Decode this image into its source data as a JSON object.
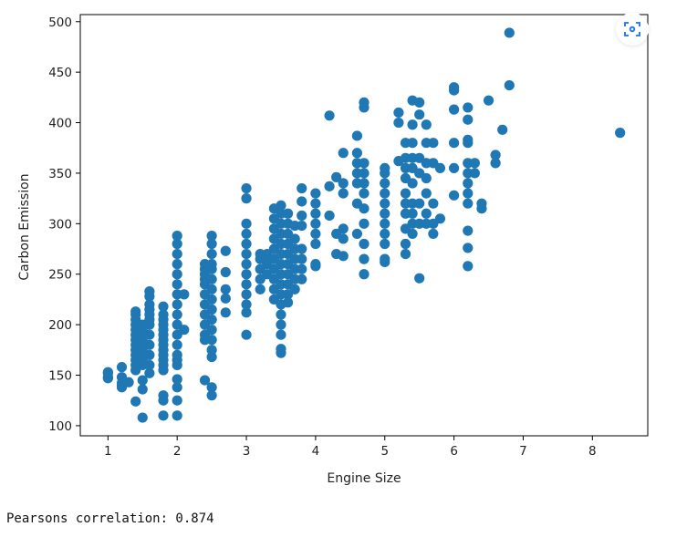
{
  "chart_data": {
    "type": "scatter",
    "xlabel": "Engine Size",
    "ylabel": "Carbon Emission",
    "xlim": [
      0.6,
      8.8
    ],
    "ylim": [
      90,
      507
    ],
    "xticks": [
      1,
      2,
      3,
      4,
      5,
      6,
      7,
      8
    ],
    "yticks": [
      100,
      150,
      200,
      250,
      300,
      350,
      400,
      450,
      500
    ],
    "grid": false,
    "marker_color": "#1f77b4",
    "columns": [
      {
        "x": 1.0,
        "y": [
          147,
          148,
          152,
          153
        ]
      },
      {
        "x": 1.2,
        "y": [
          138,
          140,
          142,
          148,
          158
        ]
      },
      {
        "x": 1.3,
        "y": [
          143
        ]
      },
      {
        "x": 1.4,
        "y": [
          124,
          155,
          160,
          165,
          170,
          175,
          180,
          185,
          190,
          195,
          200,
          205,
          210,
          213
        ]
      },
      {
        "x": 1.5,
        "y": [
          108,
          136,
          145,
          160,
          165,
          170,
          175,
          180,
          185,
          190,
          195,
          200
        ]
      },
      {
        "x": 1.6,
        "y": [
          152,
          160,
          170,
          180,
          190,
          200,
          205,
          210,
          215,
          220,
          228,
          233
        ]
      },
      {
        "x": 1.8,
        "y": [
          110,
          125,
          130,
          155,
          160,
          165,
          170,
          175,
          180,
          185,
          190,
          195,
          200,
          205,
          210,
          218
        ]
      },
      {
        "x": 2.0,
        "y": [
          110,
          125,
          138,
          146,
          160,
          165,
          170,
          180,
          190,
          200,
          210,
          220,
          230,
          240,
          250,
          260,
          270,
          280,
          288
        ]
      },
      {
        "x": 2.1,
        "y": [
          195,
          230
        ]
      },
      {
        "x": 2.4,
        "y": [
          145,
          185,
          190,
          200,
          210,
          220,
          230,
          240,
          245,
          250,
          255,
          260
        ]
      },
      {
        "x": 2.5,
        "y": [
          130,
          138,
          168,
          175,
          185,
          195,
          205,
          215,
          225,
          235,
          245,
          255,
          260,
          270,
          280,
          288
        ]
      },
      {
        "x": 2.7,
        "y": [
          212,
          226,
          235,
          252,
          273
        ]
      },
      {
        "x": 3.0,
        "y": [
          190,
          212,
          220,
          230,
          240,
          250,
          260,
          270,
          280,
          290,
          300,
          325,
          335
        ]
      },
      {
        "x": 3.2,
        "y": [
          235,
          245,
          255,
          265,
          270
        ]
      },
      {
        "x": 3.3,
        "y": [
          250,
          260,
          262,
          270
        ]
      },
      {
        "x": 3.4,
        "y": [
          225,
          235,
          245,
          255,
          265,
          275,
          285,
          295,
          305,
          315
        ]
      },
      {
        "x": 3.5,
        "y": [
          172,
          176,
          190,
          200,
          210,
          220,
          230,
          240,
          250,
          260,
          270,
          280,
          290,
          300,
          310,
          318
        ]
      },
      {
        "x": 3.6,
        "y": [
          222,
          230,
          240,
          250,
          260,
          270,
          280,
          290,
          300,
          310
        ]
      },
      {
        "x": 3.7,
        "y": [
          235,
          245,
          255,
          265,
          275,
          285,
          298
        ]
      },
      {
        "x": 3.8,
        "y": [
          245,
          255,
          265,
          275,
          298,
          308,
          322,
          335
        ]
      },
      {
        "x": 4.0,
        "y": [
          258,
          260,
          280,
          290,
          300,
          310,
          320,
          330
        ]
      },
      {
        "x": 4.2,
        "y": [
          308,
          337,
          407
        ]
      },
      {
        "x": 4.3,
        "y": [
          270,
          290,
          346
        ]
      },
      {
        "x": 4.4,
        "y": [
          268,
          285,
          295,
          330,
          340,
          370
        ]
      },
      {
        "x": 4.6,
        "y": [
          290,
          320,
          340,
          350,
          360,
          370,
          387
        ]
      },
      {
        "x": 4.7,
        "y": [
          250,
          265,
          280,
          300,
          315,
          330,
          340,
          350,
          360,
          415,
          420
        ]
      },
      {
        "x": 5.0,
        "y": [
          262,
          265,
          280,
          290,
          300,
          310,
          320,
          330,
          340,
          350,
          355
        ]
      },
      {
        "x": 5.2,
        "y": [
          362,
          400,
          410
        ]
      },
      {
        "x": 5.3,
        "y": [
          270,
          280,
          295,
          310,
          320,
          330,
          345,
          355,
          365,
          380
        ]
      },
      {
        "x": 5.4,
        "y": [
          290,
          300,
          310,
          320,
          340,
          355,
          365,
          380,
          398,
          422
        ]
      },
      {
        "x": 5.5,
        "y": [
          246,
          300,
          320,
          350,
          365,
          408,
          420
        ]
      },
      {
        "x": 5.6,
        "y": [
          300,
          310,
          330,
          345,
          360,
          380,
          398
        ]
      },
      {
        "x": 5.7,
        "y": [
          290,
          300,
          320,
          360,
          380
        ]
      },
      {
        "x": 5.8,
        "y": [
          305,
          355
        ]
      },
      {
        "x": 6.0,
        "y": [
          328,
          355,
          380,
          413,
          432,
          435
        ]
      },
      {
        "x": 6.2,
        "y": [
          258,
          276,
          293,
          320,
          330,
          340,
          350,
          360,
          380,
          383,
          403,
          415
        ]
      },
      {
        "x": 6.3,
        "y": [
          350,
          360
        ]
      },
      {
        "x": 6.4,
        "y": [
          315,
          320
        ]
      },
      {
        "x": 6.5,
        "y": [
          422
        ]
      },
      {
        "x": 6.6,
        "y": [
          360,
          368
        ]
      },
      {
        "x": 6.7,
        "y": [
          393
        ]
      },
      {
        "x": 6.8,
        "y": [
          437,
          489
        ]
      },
      {
        "x": 8.4,
        "y": [
          390
        ]
      }
    ]
  },
  "output": {
    "text": "Pearsons correlation: 0.874"
  },
  "toolbar": {
    "focus_icon": "scan-focus-icon",
    "icon_color": "#1a73e8"
  }
}
